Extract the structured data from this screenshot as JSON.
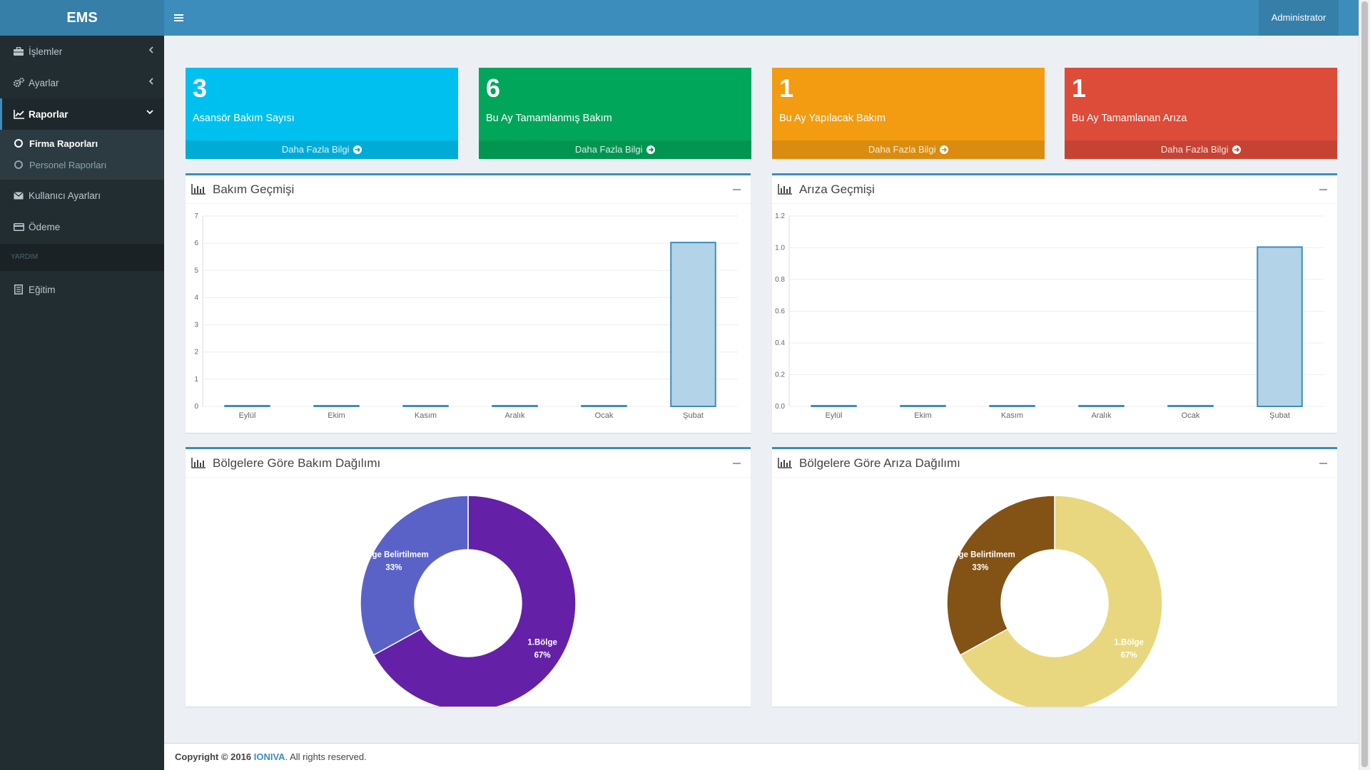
{
  "header": {
    "logo": "EMS",
    "user": "Administrator"
  },
  "sidebar": {
    "items": [
      {
        "label": "İşlemler",
        "icon": "briefcase-icon"
      },
      {
        "label": "Ayarlar",
        "icon": "gears-icon"
      },
      {
        "label": "Raporlar",
        "icon": "line-chart-icon"
      }
    ],
    "submenu": [
      {
        "label": "Firma Raporları"
      },
      {
        "label": "Personel Raporları"
      }
    ],
    "items2": [
      {
        "label": "Kullanıcı Ayarları",
        "icon": "envelope-icon"
      },
      {
        "label": "Ödeme",
        "icon": "credit-card-icon"
      }
    ],
    "help_header": "YARDIM",
    "help_items": [
      {
        "label": "Eğitim",
        "icon": "book-icon"
      }
    ]
  },
  "info_boxes": [
    {
      "value": "3",
      "label": "Asansör Bakım Sayısı",
      "more": "Daha Fazla Bilgi",
      "color": "#00c0ef"
    },
    {
      "value": "6",
      "label": "Bu Ay Tamamlanmış Bakım",
      "more": "Daha Fazla Bilgi",
      "color": "#00a65a"
    },
    {
      "value": "1",
      "label": "Bu Ay Yapılacak Bakım",
      "more": "Daha Fazla Bilgi",
      "color": "#f39c12"
    },
    {
      "value": "1",
      "label": "Bu Ay Tamamlanan Arıza",
      "more": "Daha Fazla Bilgi",
      "color": "#dd4b39"
    }
  ],
  "panels": {
    "bakim_gecmisi": "Bakım Geçmişi",
    "ariza_gecmisi": "Arıza Geçmişi",
    "bakim_dagilimi": "Bölgelere Göre Bakım Dağılımı",
    "ariza_dagilimi": "Bölgelere Göre Arıza Dağılımı"
  },
  "chart_data": [
    {
      "type": "bar",
      "title": "Bakım Geçmişi",
      "categories": [
        "Eylül",
        "Ekim",
        "Kasım",
        "Aralık",
        "Ocak",
        "Şubat"
      ],
      "values": [
        0,
        0,
        0,
        0,
        0,
        6
      ],
      "ylim": [
        0,
        7
      ],
      "yticks": [
        "0",
        "1",
        "2",
        "3",
        "4",
        "5",
        "6",
        "7"
      ],
      "grid": true,
      "bar_color": "#b3d3e8",
      "bar_border": "#3c8dbc"
    },
    {
      "type": "bar",
      "title": "Arıza Geçmişi",
      "categories": [
        "Eylül",
        "Ekim",
        "Kasım",
        "Aralık",
        "Ocak",
        "Şubat"
      ],
      "values": [
        0,
        0,
        0,
        0,
        0,
        1
      ],
      "ylim": [
        0,
        1.2
      ],
      "yticks": [
        "0.0",
        "0.2",
        "0.4",
        "0.6",
        "0.8",
        "1.0",
        "1.2"
      ],
      "grid": true,
      "bar_color": "#b3d3e8",
      "bar_border": "#3c8dbc"
    },
    {
      "type": "pie",
      "title": "Bölgelere Göre Bakım Dağılımı",
      "slices": [
        {
          "name": "1.Bölge",
          "value": 67,
          "pct": "67%",
          "color": "#6421a8"
        },
        {
          "name": "Bölge Belirtilmemiş",
          "display": "Bölge Belirtilmem",
          "value": 33,
          "pct": "33%",
          "color": "#5b62c7"
        }
      ]
    },
    {
      "type": "pie",
      "title": "Bölgelere Göre Arıza Dağılımı",
      "slices": [
        {
          "name": "1.Bölge",
          "value": 67,
          "pct": "67%",
          "color": "#e8d77e"
        },
        {
          "name": "Bölge Belirtilmemiş",
          "display": "Bölge Belirtilmem",
          "value": 33,
          "pct": "33%",
          "color": "#835215"
        }
      ]
    }
  ],
  "footer": {
    "prefix": "Copyright © 2016",
    "brand": "IONIVA",
    "suffix": ". All rights reserved."
  }
}
